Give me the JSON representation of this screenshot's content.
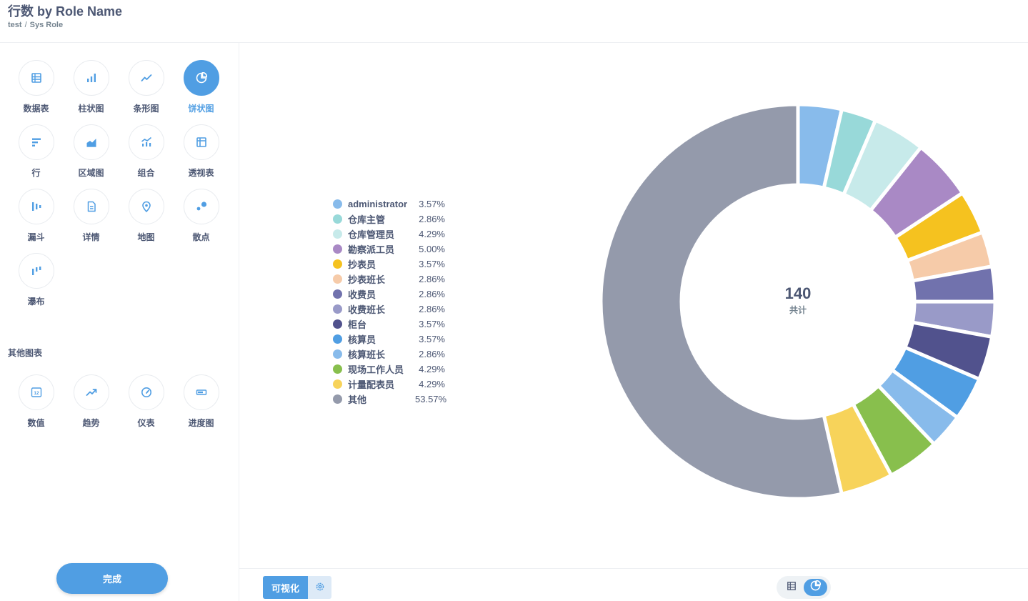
{
  "header": {
    "title": "行数 by Role Name",
    "breadcrumb": [
      "test",
      "Sys Role"
    ],
    "breadcrumb_sep": "/"
  },
  "visualizations": [
    {
      "label": "数据表",
      "icon": "table-icon"
    },
    {
      "label": "柱状图",
      "icon": "bar-chart-icon"
    },
    {
      "label": "条形图",
      "icon": "line-chart-icon"
    },
    {
      "label": "饼状图",
      "icon": "pie-chart-icon",
      "selected": true
    },
    {
      "label": "行",
      "icon": "row-chart-icon"
    },
    {
      "label": "区域图",
      "icon": "area-chart-icon"
    },
    {
      "label": "组合",
      "icon": "combo-chart-icon"
    },
    {
      "label": "透视表",
      "icon": "pivot-table-icon"
    },
    {
      "label": "漏斗",
      "icon": "funnel-icon"
    },
    {
      "label": "详情",
      "icon": "document-icon"
    },
    {
      "label": "地图",
      "icon": "map-pin-icon"
    },
    {
      "label": "散点",
      "icon": "scatter-icon"
    },
    {
      "label": "瀑布",
      "icon": "waterfall-icon"
    }
  ],
  "others_title": "其他图表",
  "other_visualizations": [
    {
      "label": "数值",
      "icon": "number-icon",
      "glyph": "12"
    },
    {
      "label": "趋势",
      "icon": "trend-icon"
    },
    {
      "label": "仪表",
      "icon": "gauge-icon"
    },
    {
      "label": "进度图",
      "icon": "progress-icon"
    }
  ],
  "done_label": "完成",
  "footer": {
    "viz_label": "可视化"
  },
  "colors": {
    "accent": "#509ee3"
  },
  "chart_data": {
    "type": "pie",
    "total": "140",
    "total_label": "共计",
    "slices": [
      {
        "name": "administrator",
        "pct": "3.57%",
        "value": 3.57,
        "color": "#88bbeb"
      },
      {
        "name": "仓库主管",
        "pct": "2.86%",
        "value": 2.86,
        "color": "#98d9d9"
      },
      {
        "name": "仓库管理员",
        "pct": "4.29%",
        "value": 4.29,
        "color": "#c7eaea"
      },
      {
        "name": "勘察派工员",
        "pct": "5.00%",
        "value": 5.0,
        "color": "#a989c5"
      },
      {
        "name": "抄表员",
        "pct": "3.57%",
        "value": 3.57,
        "color": "#f5c21f"
      },
      {
        "name": "抄表班长",
        "pct": "2.86%",
        "value": 2.86,
        "color": "#f6cba9"
      },
      {
        "name": "收费员",
        "pct": "2.86%",
        "value": 2.86,
        "color": "#7172ad"
      },
      {
        "name": "收费班长",
        "pct": "2.86%",
        "value": 2.86,
        "color": "#999ac8"
      },
      {
        "name": "柜台",
        "pct": "3.57%",
        "value": 3.57,
        "color": "#51528d"
      },
      {
        "name": "核算员",
        "pct": "3.57%",
        "value": 3.57,
        "color": "#509ee3"
      },
      {
        "name": "核算班长",
        "pct": "2.86%",
        "value": 2.86,
        "color": "#88bbeb"
      },
      {
        "name": "现场工作人员",
        "pct": "4.29%",
        "value": 4.29,
        "color": "#88bf4d"
      },
      {
        "name": "计量配表员",
        "pct": "4.29%",
        "value": 4.29,
        "color": "#f7d35a"
      },
      {
        "name": "其他",
        "pct": "53.57%",
        "value": 53.57,
        "color": "#949aab"
      }
    ]
  }
}
